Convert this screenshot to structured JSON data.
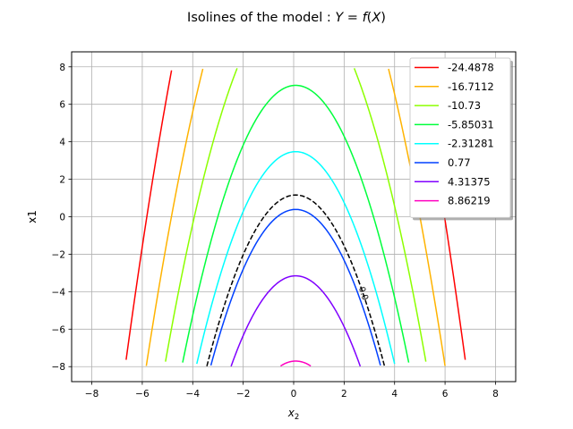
{
  "chart_data": {
    "type": "line",
    "title": "Isolines of the model : Y = f(X)",
    "title_parts": {
      "prefix": "Isolines of the model : ",
      "y": "Y",
      "eq": " = ",
      "f": "f",
      "open": "(",
      "x": "X",
      "close": ")"
    },
    "xlabel": "x",
    "xlabel_sub": "2",
    "ylabel": "x1",
    "xlim": [
      -8.8,
      8.8
    ],
    "ylim": [
      -8.8,
      8.8
    ],
    "xticks": [
      -8,
      -6,
      -4,
      -2,
      0,
      2,
      4,
      6,
      8
    ],
    "yticks": [
      -8,
      -6,
      -4,
      -2,
      0,
      2,
      4,
      6,
      8
    ],
    "xtick_labels": [
      "−8",
      "−6",
      "−4",
      "−2",
      "0",
      "2",
      "4",
      "6",
      "8"
    ],
    "ytick_labels": [
      "−8",
      "−6",
      "−4",
      "−2",
      "0",
      "2",
      "4",
      "6",
      "8"
    ],
    "grid": true,
    "legend_position": "top-right",
    "model": {
      "vertex_x2": 0.08,
      "vertex_offset": 1.16,
      "curvature": 0.737
    },
    "series": [
      {
        "name": "-24.4878",
        "level": -24.4878,
        "color": "#ff0000"
      },
      {
        "name": "-16.7112",
        "level": -16.7112,
        "color": "#ffb300"
      },
      {
        "name": "-10.73",
        "level": -10.73,
        "color": "#8cff00"
      },
      {
        "name": "-5.85031",
        "level": -5.85031,
        "color": "#00ff3c"
      },
      {
        "name": "-2.31281",
        "level": -2.31281,
        "color": "#00ffff"
      },
      {
        "name": "0.77",
        "level": 0.77,
        "color": "#0040ff"
      },
      {
        "name": "4.31375",
        "level": 4.31375,
        "color": "#8000ff"
      },
      {
        "name": "8.86219",
        "level": 8.86219,
        "color": "#ff00c0"
      }
    ],
    "threshold": {
      "level": 0.0,
      "label": "0.0",
      "color": "#000000",
      "style": "dashed"
    }
  }
}
